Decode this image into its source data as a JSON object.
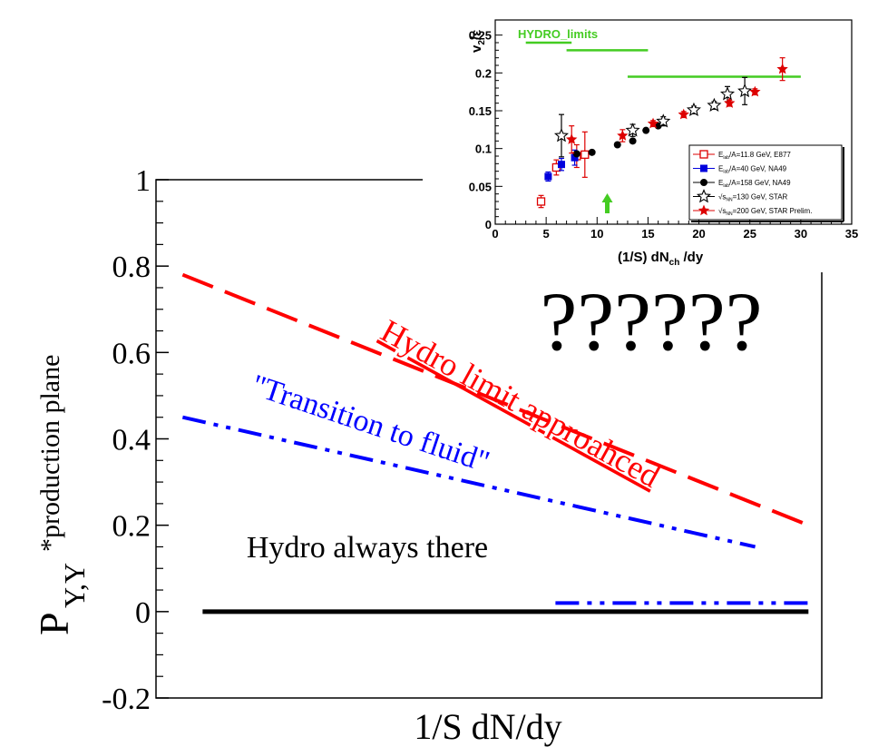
{
  "chart_data": [
    {
      "type": "line",
      "xlabel": "1/S dN/dy",
      "ylabel": {
        "main": "P",
        "subscript": "Y,Y",
        "superscript": "*production plane"
      },
      "ylim": [
        -0.2,
        1.0
      ],
      "xlim": [
        0,
        1
      ],
      "yticks": [
        "1",
        "0.8",
        "0.6",
        "0.4",
        "0.2",
        "0",
        "-0.2"
      ],
      "series": [
        {
          "key": "hydro_limit",
          "style": "dashed",
          "color": "#ff0000",
          "x": [
            0.04,
            0.98
          ],
          "y": [
            0.78,
            0.2
          ]
        },
        {
          "key": "transition",
          "style": "dash-dot-dot",
          "color": "#0000ff",
          "x": [
            0.04,
            0.9
          ],
          "y": [
            0.45,
            0.15
          ]
        },
        {
          "key": "transition_tail",
          "style": "dash-dot-dot",
          "color": "#0000ff",
          "x": [
            0.6,
            0.98
          ],
          "y": [
            0.02,
            0.02
          ]
        },
        {
          "key": "hydro_always",
          "style": "solid",
          "color": "#000000",
          "x": [
            0.07,
            0.98
          ],
          "y": [
            0.0,
            0.0
          ]
        }
      ],
      "annotations": {
        "hydro_limit": "Hydro limit approahced",
        "transition": "\"Transition to fluid\"",
        "hydro_always": "Hydro always there",
        "question": "??????"
      }
    },
    {
      "type": "scatter",
      "ylabel": {
        "main": "v",
        "sub": "2",
        "rest": "/ε"
      },
      "xlabel": {
        "pre": "(1/S) dN",
        "sub": "ch",
        "post": " /dy"
      },
      "xlim": [
        0,
        35
      ],
      "ylim": [
        0,
        0.27
      ],
      "xticks": [
        "0",
        "5",
        "10",
        "15",
        "20",
        "25",
        "30",
        "35"
      ],
      "yticks": [
        "0",
        "0.05",
        "0.1",
        "0.15",
        "0.2",
        "0.25"
      ],
      "hydro_label": "HYDRO_limits",
      "hydro_limits": [
        {
          "x": [
            3.0,
            7.5
          ],
          "y": 0.24
        },
        {
          "x": [
            7.0,
            15.0
          ],
          "y": 0.23
        },
        {
          "x": [
            13.0,
            30.0
          ],
          "y": 0.195
        }
      ],
      "arrow_x": 11.0,
      "series": [
        {
          "name": "E_lab/A=11.8 GeV, E877",
          "marker": "open-square",
          "color": "#dd0000",
          "points": [
            [
              4.5,
              0.03,
              0.008
            ],
            [
              6.0,
              0.075,
              0.01
            ],
            [
              8.0,
              0.09,
              0.015
            ],
            [
              8.8,
              0.092,
              0.03
            ]
          ]
        },
        {
          "name": "E_lab/A=40 GeV, NA49",
          "marker": "filled-square",
          "color": "#0000dd",
          "points": [
            [
              5.2,
              0.063,
              0.006
            ],
            [
              6.5,
              0.079,
              0.008
            ],
            [
              7.8,
              0.088,
              0.01
            ]
          ]
        },
        {
          "name": "E_lab/A=158 GeV, NA49",
          "marker": "filled-circle",
          "color": "#000000",
          "points": [
            [
              8.0,
              0.093,
              0
            ],
            [
              9.5,
              0.095,
              0
            ],
            [
              12.0,
              0.105,
              0
            ],
            [
              13.5,
              0.11,
              0
            ],
            [
              14.8,
              0.124,
              0
            ],
            [
              16.0,
              0.13,
              0
            ]
          ]
        },
        {
          "name": "√s_NN=130 GeV, STAR",
          "marker": "open-star",
          "color": "#000000",
          "points": [
            [
              6.5,
              0.117,
              0.028
            ],
            [
              13.5,
              0.124,
              0.008
            ],
            [
              16.5,
              0.136,
              0.006
            ],
            [
              19.5,
              0.151,
              0.005
            ],
            [
              21.5,
              0.157,
              0.005
            ],
            [
              22.8,
              0.172,
              0.01
            ],
            [
              24.5,
              0.176,
              0.018
            ]
          ]
        },
        {
          "name": "√s_NN=200 GeV, STAR Prelim.",
          "marker": "filled-star",
          "color": "#dd0000",
          "points": [
            [
              7.5,
              0.112,
              0.018
            ],
            [
              12.5,
              0.117,
              0.008
            ],
            [
              15.5,
              0.133,
              0.004
            ],
            [
              18.5,
              0.145,
              0.004
            ],
            [
              23.0,
              0.16,
              0.004
            ],
            [
              25.5,
              0.175,
              0.004
            ],
            [
              28.2,
              0.205,
              0.015
            ]
          ]
        }
      ],
      "legend": [
        {
          "pre": "E",
          "sub": "lab",
          "post": "/A=11.8 GeV, E877"
        },
        {
          "pre": "E",
          "sub": "lab",
          "post": "/A=40 GeV, NA49"
        },
        {
          "pre": "E",
          "sub": "lab",
          "post": "/A=158 GeV, NA49"
        },
        {
          "pre": "√s",
          "sub": "NN",
          "post": "=130 GeV, STAR"
        },
        {
          "pre": "√s",
          "sub": "NN",
          "post": "=200 GeV, STAR Prelim."
        }
      ]
    }
  ]
}
